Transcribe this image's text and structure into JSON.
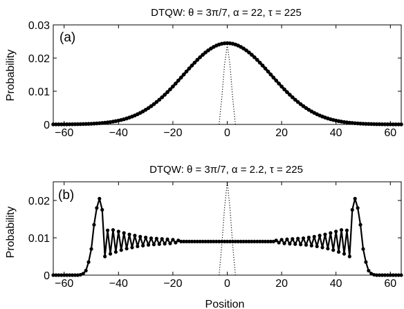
{
  "chart_data": [
    {
      "type": "line",
      "title": "DTQW: θ = 3π/7, α = 22, τ = 225",
      "panel_label": "(a)",
      "xlabel": "",
      "ylabel": "Probability",
      "xlim": [
        -64,
        64
      ],
      "ylim": [
        0,
        0.03
      ],
      "xticks": [
        -60,
        -40,
        -20,
        0,
        20,
        40,
        60
      ],
      "xtick_labels": [
        "−60",
        "−40",
        "−20",
        "0",
        "20",
        "40",
        "60"
      ],
      "yticks": [
        0,
        0.01,
        0.02,
        0.03
      ],
      "ytick_labels": [
        "0",
        "0.01",
        "0.02",
        "0.03"
      ],
      "grid": false,
      "series": [
        {
          "style": "solid-with-markers",
          "color": "#000000",
          "model": "gaussian",
          "peak_x": 0,
          "peak_y": 0.0245,
          "sigma": 16.2
        },
        {
          "style": "dotted",
          "color": "#000000",
          "x": [
            -3,
            -2,
            -1,
            0,
            1,
            2,
            3
          ],
          "y": [
            0,
            0.008,
            0.018,
            0.024,
            0.018,
            0.008,
            0
          ]
        }
      ]
    },
    {
      "type": "line",
      "title": "DTQW: θ = 3π/7, α = 2.2, τ = 225",
      "panel_label": "(b)",
      "xlabel": "Position",
      "ylabel": "Probability",
      "xlim": [
        -64,
        64
      ],
      "ylim": [
        0,
        0.025
      ],
      "xticks": [
        -60,
        -40,
        -20,
        0,
        20,
        40,
        60
      ],
      "xtick_labels": [
        "−60",
        "−40",
        "−20",
        "0",
        "20",
        "40",
        "60"
      ],
      "yticks": [
        0,
        0.01,
        0.02
      ],
      "ytick_labels": [
        "0",
        "0.01",
        "0.02"
      ],
      "grid": false,
      "series": [
        {
          "style": "solid-with-markers",
          "color": "#000000",
          "x": [
            0,
            1,
            2,
            3,
            4,
            5,
            6,
            7,
            8,
            9,
            10,
            11,
            12,
            13,
            14,
            15,
            16,
            17,
            18,
            19,
            20,
            21,
            22,
            23,
            24,
            25,
            26,
            27,
            28,
            29,
            30,
            31,
            32,
            33,
            34,
            35,
            36,
            37,
            38,
            39,
            40,
            41,
            42,
            43,
            44,
            45,
            46,
            47,
            48,
            49,
            50,
            51,
            52,
            53,
            54,
            55,
            56,
            57,
            58,
            59,
            60,
            61,
            62,
            63,
            64
          ],
          "y": [
            0.009,
            0.009,
            0.009,
            0.009,
            0.009,
            0.009,
            0.009,
            0.009,
            0.009,
            0.009,
            0.009,
            0.009,
            0.009,
            0.009,
            0.009,
            0.009,
            0.009,
            0.009,
            0.0093,
            0.0087,
            0.0095,
            0.0085,
            0.0096,
            0.0084,
            0.0097,
            0.0083,
            0.0098,
            0.0082,
            0.0099,
            0.0081,
            0.0101,
            0.0079,
            0.0103,
            0.0077,
            0.0106,
            0.0074,
            0.0109,
            0.0071,
            0.0113,
            0.0067,
            0.0117,
            0.0062,
            0.0121,
            0.0057,
            0.012,
            0.005,
            0.0175,
            0.0205,
            0.018,
            0.0135,
            0.007,
            0.0035,
            0.0012,
            0.0004,
            0.0001,
            0,
            0,
            0,
            0,
            0,
            0,
            0,
            0,
            0,
            0
          ],
          "symmetric": true
        },
        {
          "style": "dotted",
          "color": "#000000",
          "x": [
            -3,
            -2,
            -1,
            0,
            1,
            2,
            3
          ],
          "y": [
            0,
            0.008,
            0.018,
            0.025,
            0.018,
            0.008,
            0
          ]
        }
      ]
    }
  ]
}
